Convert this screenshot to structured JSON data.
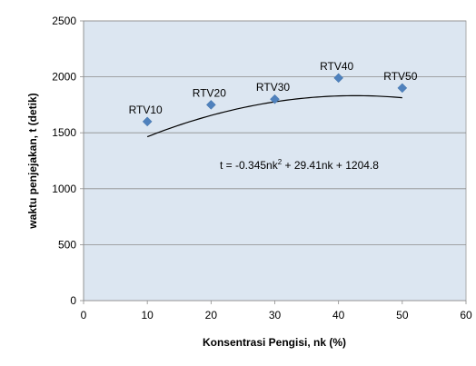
{
  "chart_data": {
    "type": "scatter",
    "xlabel": "Konsentrasi Pengisi, nk (%)",
    "ylabel": "waktu penjejakan, t (detik)",
    "xlim": [
      0,
      60
    ],
    "ylim": [
      0,
      2500
    ],
    "x_ticks": [
      0,
      10,
      20,
      30,
      40,
      50,
      60
    ],
    "y_ticks": [
      0,
      500,
      1000,
      1500,
      2000,
      2500
    ],
    "grid": "horizontal",
    "plot_background": "#dce6f1",
    "marker_color": "#4f81bd",
    "trendline_color": "#000000",
    "points": [
      {
        "x": 10,
        "y": 1600,
        "label": "RTV10"
      },
      {
        "x": 20,
        "y": 1750,
        "label": "RTV20"
      },
      {
        "x": 30,
        "y": 1800,
        "label": "RTV30"
      },
      {
        "x": 40,
        "y": 1990,
        "label": "RTV40"
      },
      {
        "x": 50,
        "y": 1900,
        "label": "RTV50"
      }
    ],
    "trendline": {
      "type": "polynomial",
      "coefficients": {
        "a": -0.345,
        "b": 29.41,
        "c": 1204.8
      },
      "x_range": [
        10,
        50
      ],
      "equation": {
        "prefix": "t = -0.345nk",
        "superscript": "2",
        "suffix": " + 29.41nk + 1204.8"
      }
    }
  }
}
